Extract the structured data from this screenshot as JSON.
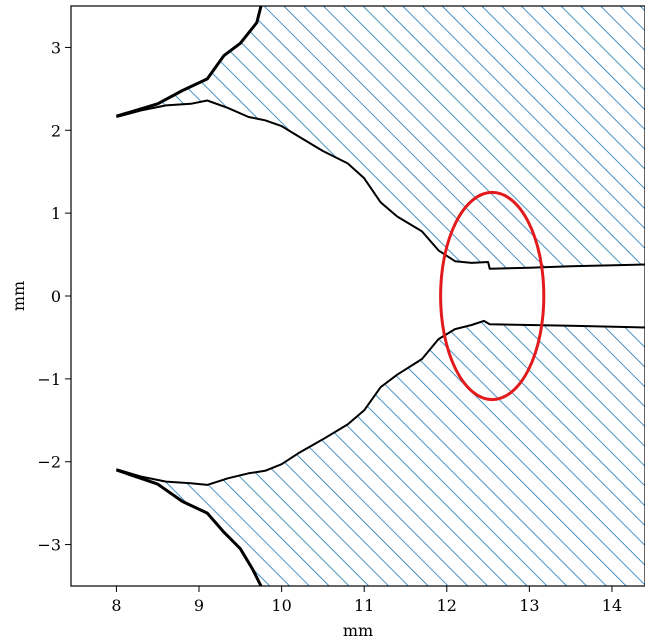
{
  "chart_data": {
    "type": "area",
    "title": "",
    "xlabel": "mm",
    "ylabel": "mm",
    "xlim": [
      7.45,
      14.4
    ],
    "ylim": [
      -3.5,
      3.5
    ],
    "xticks": [
      8,
      9,
      10,
      11,
      12,
      13,
      14
    ],
    "yticks": [
      -3,
      -2,
      -1,
      0,
      1,
      2,
      3
    ],
    "xtick_labels": [
      "8",
      "9",
      "10",
      "11",
      "12",
      "13",
      "14"
    ],
    "ytick_labels": [
      "−3",
      "−2",
      "−1",
      "0",
      "1",
      "2",
      "3"
    ],
    "grid": false,
    "hatch_color": "#1f77b4",
    "outline_color": "#000000",
    "highlight_color": "#e31a1c",
    "upper_region": {
      "outer_edge": [
        [
          8.0,
          2.17
        ],
        [
          8.5,
          2.32
        ],
        [
          8.8,
          2.48
        ],
        [
          9.1,
          2.62
        ],
        [
          9.3,
          2.9
        ],
        [
          9.5,
          3.05
        ],
        [
          9.7,
          3.3
        ],
        [
          9.75,
          3.5
        ]
      ],
      "inner_edge": [
        [
          8.0,
          2.16
        ],
        [
          8.3,
          2.24
        ],
        [
          8.6,
          2.3
        ],
        [
          8.9,
          2.32
        ],
        [
          9.1,
          2.36
        ],
        [
          9.35,
          2.27
        ],
        [
          9.6,
          2.16
        ],
        [
          9.8,
          2.12
        ],
        [
          10.0,
          2.05
        ],
        [
          10.2,
          1.93
        ],
        [
          10.5,
          1.75
        ],
        [
          10.8,
          1.6
        ],
        [
          11.0,
          1.42
        ],
        [
          11.2,
          1.13
        ],
        [
          11.4,
          0.96
        ],
        [
          11.7,
          0.78
        ],
        [
          11.9,
          0.55
        ],
        [
          12.1,
          0.42
        ],
        [
          12.3,
          0.4
        ],
        [
          12.5,
          0.41
        ],
        [
          12.52,
          0.33
        ],
        [
          13.0,
          0.34
        ],
        [
          13.5,
          0.36
        ],
        [
          14.4,
          0.38
        ]
      ]
    },
    "lower_region": {
      "outer_edge": [
        [
          8.0,
          -2.1
        ],
        [
          8.5,
          -2.27
        ],
        [
          8.8,
          -2.48
        ],
        [
          9.1,
          -2.62
        ],
        [
          9.3,
          -2.85
        ],
        [
          9.5,
          -3.05
        ],
        [
          9.65,
          -3.3
        ],
        [
          9.75,
          -3.5
        ]
      ],
      "inner_edge": [
        [
          8.0,
          -2.09
        ],
        [
          8.3,
          -2.18
        ],
        [
          8.6,
          -2.24
        ],
        [
          8.9,
          -2.26
        ],
        [
          9.1,
          -2.28
        ],
        [
          9.35,
          -2.2
        ],
        [
          9.6,
          -2.14
        ],
        [
          9.8,
          -2.11
        ],
        [
          10.0,
          -2.03
        ],
        [
          10.2,
          -1.9
        ],
        [
          10.5,
          -1.73
        ],
        [
          10.8,
          -1.55
        ],
        [
          11.0,
          -1.38
        ],
        [
          11.2,
          -1.1
        ],
        [
          11.4,
          -0.95
        ],
        [
          11.7,
          -0.76
        ],
        [
          11.9,
          -0.52
        ],
        [
          12.1,
          -0.4
        ],
        [
          12.3,
          -0.35
        ],
        [
          12.45,
          -0.3
        ],
        [
          12.52,
          -0.34
        ],
        [
          13.0,
          -0.35
        ],
        [
          13.5,
          -0.36
        ],
        [
          14.4,
          -0.38
        ]
      ]
    },
    "annotations": [
      {
        "type": "ellipse",
        "center": [
          12.55,
          0.0
        ],
        "width": 1.25,
        "height": 2.5
      }
    ]
  }
}
